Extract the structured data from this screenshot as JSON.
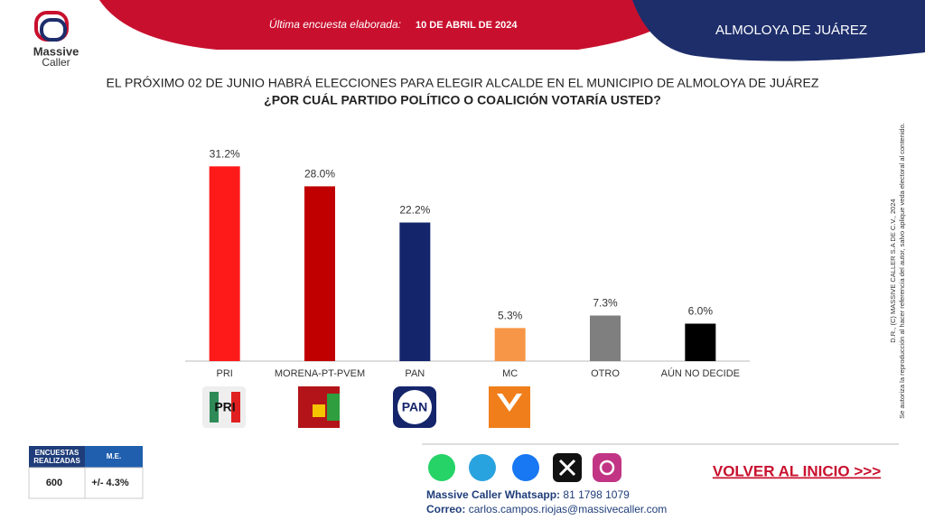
{
  "header": {
    "logo_top": "Massive",
    "logo_bottom": "Caller",
    "survey_label": "Última encuesta elaborada:",
    "survey_date": "10 DE ABRIL DE 2024",
    "region": "ALMOLOYA DE JUÁREZ"
  },
  "chart_data": {
    "type": "bar",
    "title": "EL PRÓXIMO 02 DE JUNIO HABRÁ ELECCIONES PARA ELEGIR ALCALDE EN EL MUNICIPIO DE ALMOLOYA DE JUÁREZ",
    "subtitle": "¿POR CUÁL PARTIDO POLÍTICO O COALICIÓN VOTARÍA USTED?",
    "categories": [
      "PRI",
      "MORENA-PT-PVEM",
      "PAN",
      "MC",
      "OTRO",
      "AÚN NO DECIDE"
    ],
    "values": [
      31.2,
      28.0,
      22.2,
      5.3,
      7.3,
      6.0
    ],
    "value_labels": [
      "31.2%",
      "28.0%",
      "22.2%",
      "5.3%",
      "7.3%",
      "6.0%"
    ],
    "colors": [
      "#ff1a1a",
      "#c00000",
      "#15256b",
      "#f79646",
      "#7f7f7f",
      "#000000"
    ],
    "ylim": [
      0,
      35
    ]
  },
  "logos": {
    "pri": "PRI",
    "pan": "PAN"
  },
  "table": {
    "headers": [
      "ENCUESTAS REALIZADAS",
      "M.E."
    ],
    "rows": [
      [
        "600",
        "+/- 4.3%"
      ]
    ]
  },
  "footer": {
    "whatsapp_label": "Massive Caller Whatsapp:",
    "whatsapp_number": "81 1798 1079",
    "email_label": "Correo:",
    "email": "carlos.campos.riojas@massivecaller.com",
    "button": "VOLVER AL INICIO >>>"
  },
  "side": {
    "copyright": "D.R., (C) MASSIVE CALLER S.A DE C.V., 2024",
    "notice": "Se autoriza la reproducción al hacer referencia del autor, salvo aplique veda electoral al contenido."
  }
}
